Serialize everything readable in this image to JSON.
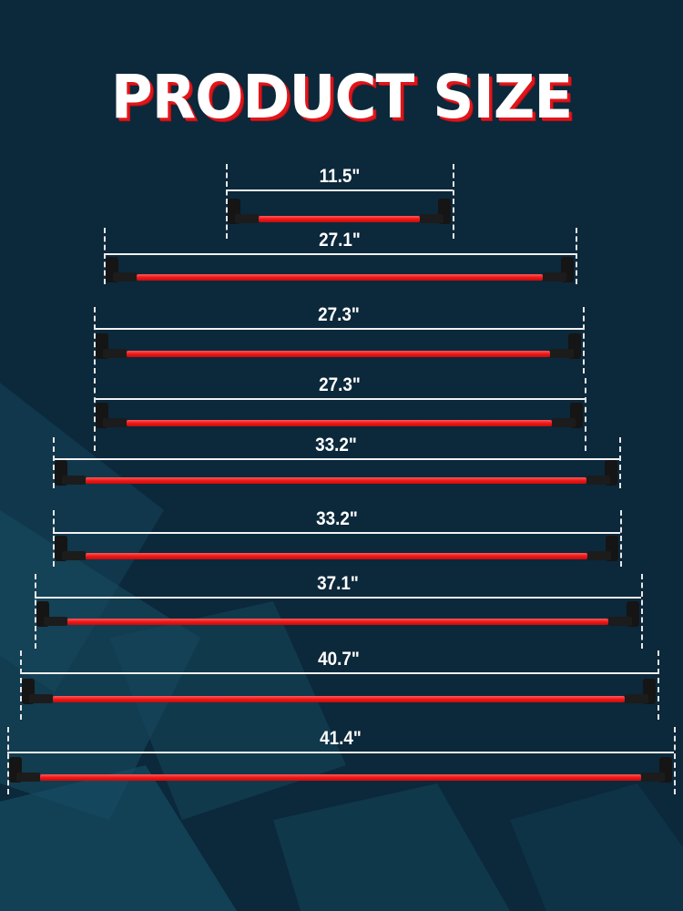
{
  "title": "PRODUCT SIZE",
  "colors": {
    "background": "#0c283b",
    "wire": "#f01818",
    "title_shadow": "#e0161b",
    "text": "#ffffff"
  },
  "measurements": [
    {
      "label": "11.5\""
    },
    {
      "label": "27.1\""
    },
    {
      "label": "27.3\""
    },
    {
      "label": "27.3\""
    },
    {
      "label": "33.2\""
    },
    {
      "label": "33.2\""
    },
    {
      "label": "37.1\""
    },
    {
      "label": "40.7\""
    },
    {
      "label": "41.4\""
    }
  ]
}
